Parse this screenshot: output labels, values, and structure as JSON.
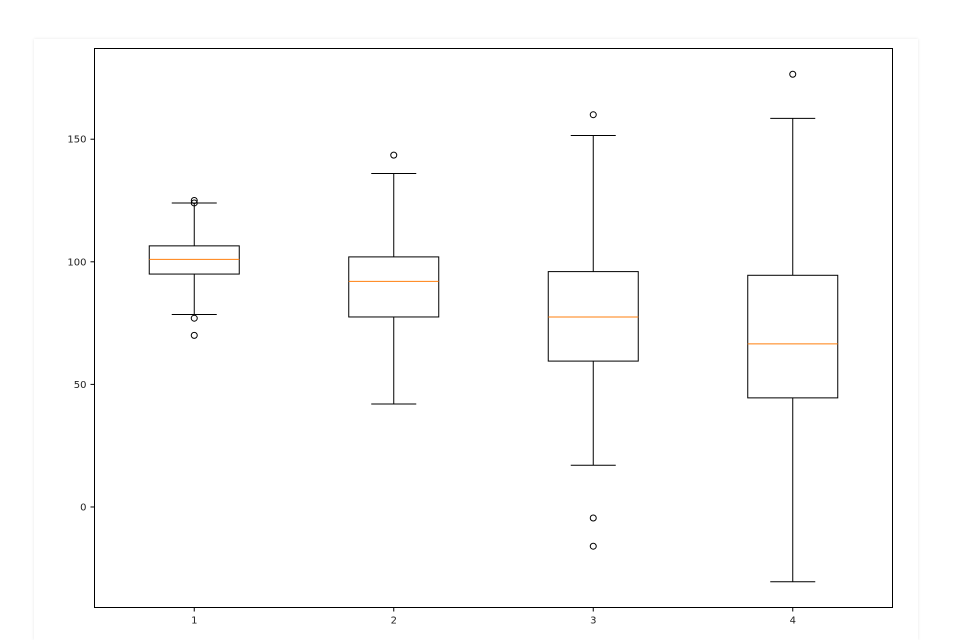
{
  "chart_data": {
    "type": "boxplot",
    "categories": [
      "1",
      "2",
      "3",
      "4"
    ],
    "boxes": [
      {
        "label": "1",
        "whisker_low": 78.5,
        "q1": 95,
        "median": 101,
        "q3": 106.5,
        "whisker_high": 124,
        "fliers": [
          125,
          124,
          77,
          70
        ]
      },
      {
        "label": "2",
        "whisker_low": 42,
        "q1": 77.5,
        "median": 92,
        "q3": 102,
        "whisker_high": 136,
        "fliers": [
          143.5
        ]
      },
      {
        "label": "3",
        "whisker_low": 17,
        "q1": 59.5,
        "median": 77.5,
        "q3": 96,
        "whisker_high": 151.5,
        "fliers": [
          160,
          -4.5,
          -16
        ]
      },
      {
        "label": "4",
        "whisker_low": -30.5,
        "q1": 44.5,
        "median": 66.5,
        "q3": 94.5,
        "whisker_high": 158.5,
        "fliers": [
          176.5
        ]
      }
    ],
    "y_ticks": [
      0,
      50,
      100,
      150
    ],
    "ylim": [
      -41,
      187
    ],
    "grid": false,
    "colors": {
      "box": "#000000",
      "median": "#ff7f0e",
      "flier": "#000000"
    }
  }
}
